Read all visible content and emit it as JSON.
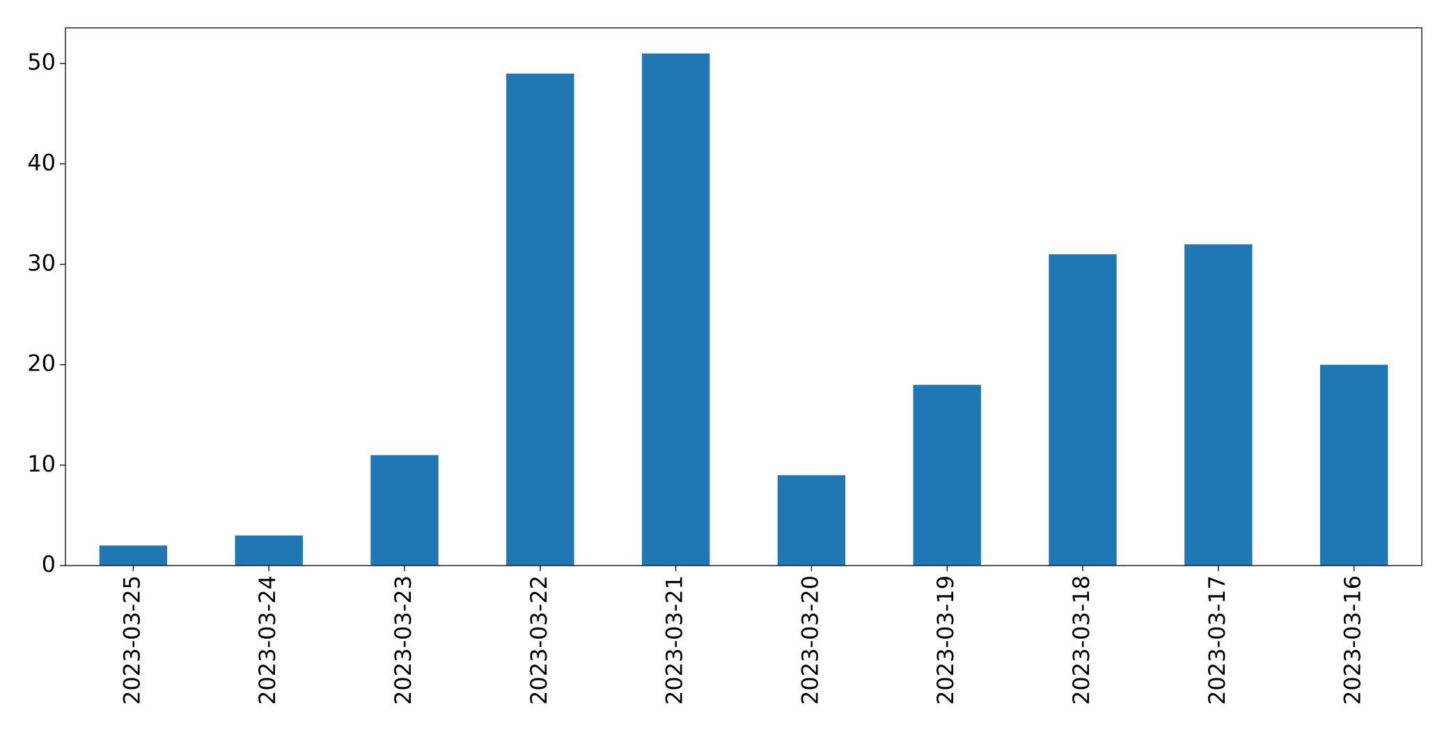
{
  "chart_data": {
    "type": "bar",
    "categories": [
      "2023-03-25",
      "2023-03-24",
      "2023-03-23",
      "2023-03-22",
      "2023-03-21",
      "2023-03-20",
      "2023-03-19",
      "2023-03-18",
      "2023-03-17",
      "2023-03-16"
    ],
    "values": [
      2,
      3,
      11,
      49,
      51,
      9,
      18,
      31,
      32,
      20
    ],
    "color": "#1f77b4",
    "ylim": [
      0,
      53.55
    ],
    "yticks": [
      0,
      10,
      20,
      30,
      40,
      50
    ],
    "grid": false
  }
}
